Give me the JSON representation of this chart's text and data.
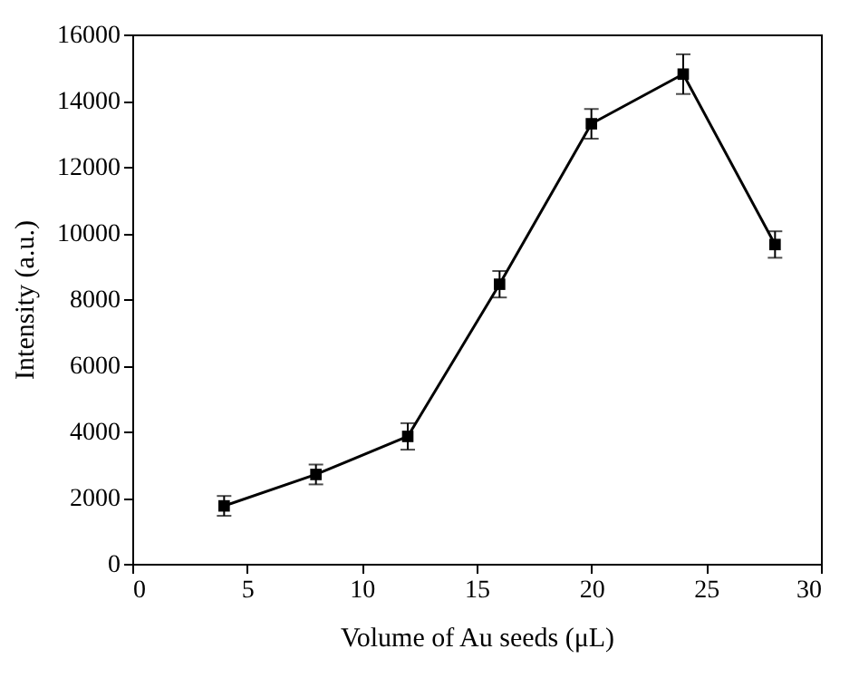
{
  "chart_data": {
    "type": "line",
    "xlabel": "Volume of Au seeds (μL)",
    "ylabel": "Intensity (a.u.)",
    "x": [
      4,
      8,
      12,
      16,
      20,
      24,
      28
    ],
    "values": [
      1750,
      2700,
      3850,
      8450,
      13300,
      14800,
      9650
    ],
    "errors": [
      300,
      300,
      400,
      400,
      450,
      600,
      400
    ],
    "color": "#000000",
    "marker": "square",
    "line_style": "solid",
    "grid": false,
    "xlim": [
      0,
      30
    ],
    "xticks": [
      0,
      5,
      10,
      15,
      20,
      25,
      30
    ],
    "ylim": [
      0,
      16000
    ],
    "yticks": [
      0,
      2000,
      4000,
      6000,
      8000,
      10000,
      12000,
      14000,
      16000
    ]
  }
}
